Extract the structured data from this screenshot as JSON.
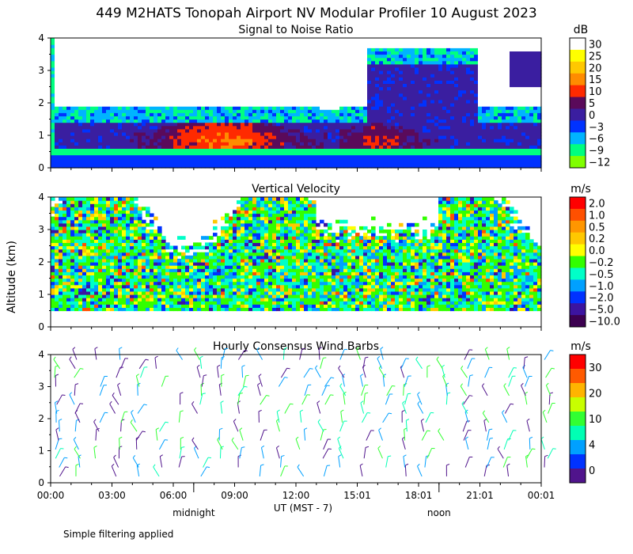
{
  "chart_data": {
    "type": "heatmap",
    "title": "449 M2HATS Tonopah Airport NV Modular Profiler 10 August 2023",
    "ylabel": "Altitude (km)",
    "xlabel": "UT  (MST - 7)",
    "x_ticks": [
      "00:00",
      "03:00",
      "06:00",
      "09:00",
      "12:00",
      "15:01",
      "18:01",
      "21:01",
      "00:01"
    ],
    "x_range_hours": [
      0,
      24
    ],
    "local_markers": [
      {
        "label": "midnight",
        "hour": 7
      },
      {
        "label": "noon",
        "hour": 19
      }
    ],
    "y_ticks": [
      0,
      1,
      2,
      3,
      4
    ],
    "ylim_km": [
      0,
      4
    ],
    "footnote": "Simple filtering applied",
    "panels": [
      {
        "title": "Signal to Noise Ratio",
        "kind": "heatmap",
        "units": "dB",
        "colorbar": {
          "labels": [
            "30",
            "25",
            "20",
            "15",
            "10",
            "5",
            "0",
            "−3",
            "−6",
            "−9",
            "−12"
          ],
          "colors": [
            "#ffffff",
            "#ffff00",
            "#ffc800",
            "#ff8c00",
            "#ff2a00",
            "#5a0a5a",
            "#3a1ea0",
            "#0032ff",
            "#00b4ff",
            "#00ff80",
            "#80ff00"
          ]
        }
      },
      {
        "title": "Vertical Velocity",
        "kind": "heatmap",
        "units": "m/s",
        "colorbar": {
          "labels": [
            "2.0",
            "1.0",
            "0.5",
            "0.2",
            "0.0",
            "−0.2",
            "−0.5",
            "−1.0",
            "−2.0",
            "−5.0",
            "−10.0"
          ],
          "colors": [
            "#ff0000",
            "#ff5000",
            "#ff9600",
            "#ffc800",
            "#ffff00",
            "#32ff00",
            "#00ffc8",
            "#00a0ff",
            "#0032ff",
            "#3c14a0",
            "#3c0050"
          ]
        }
      },
      {
        "title": "Hourly Consensus Wind Barbs",
        "kind": "barbs",
        "units": "m/s",
        "colorbar": {
          "labels": [
            "30",
            "20",
            "10",
            "4",
            "0"
          ],
          "colors": [
            "#ff0000",
            "#ff5a00",
            "#ffb400",
            "#c8ff00",
            "#32ff32",
            "#00ffb4",
            "#00a0ff",
            "#0032ff",
            "#50148c"
          ]
        }
      }
    ]
  }
}
